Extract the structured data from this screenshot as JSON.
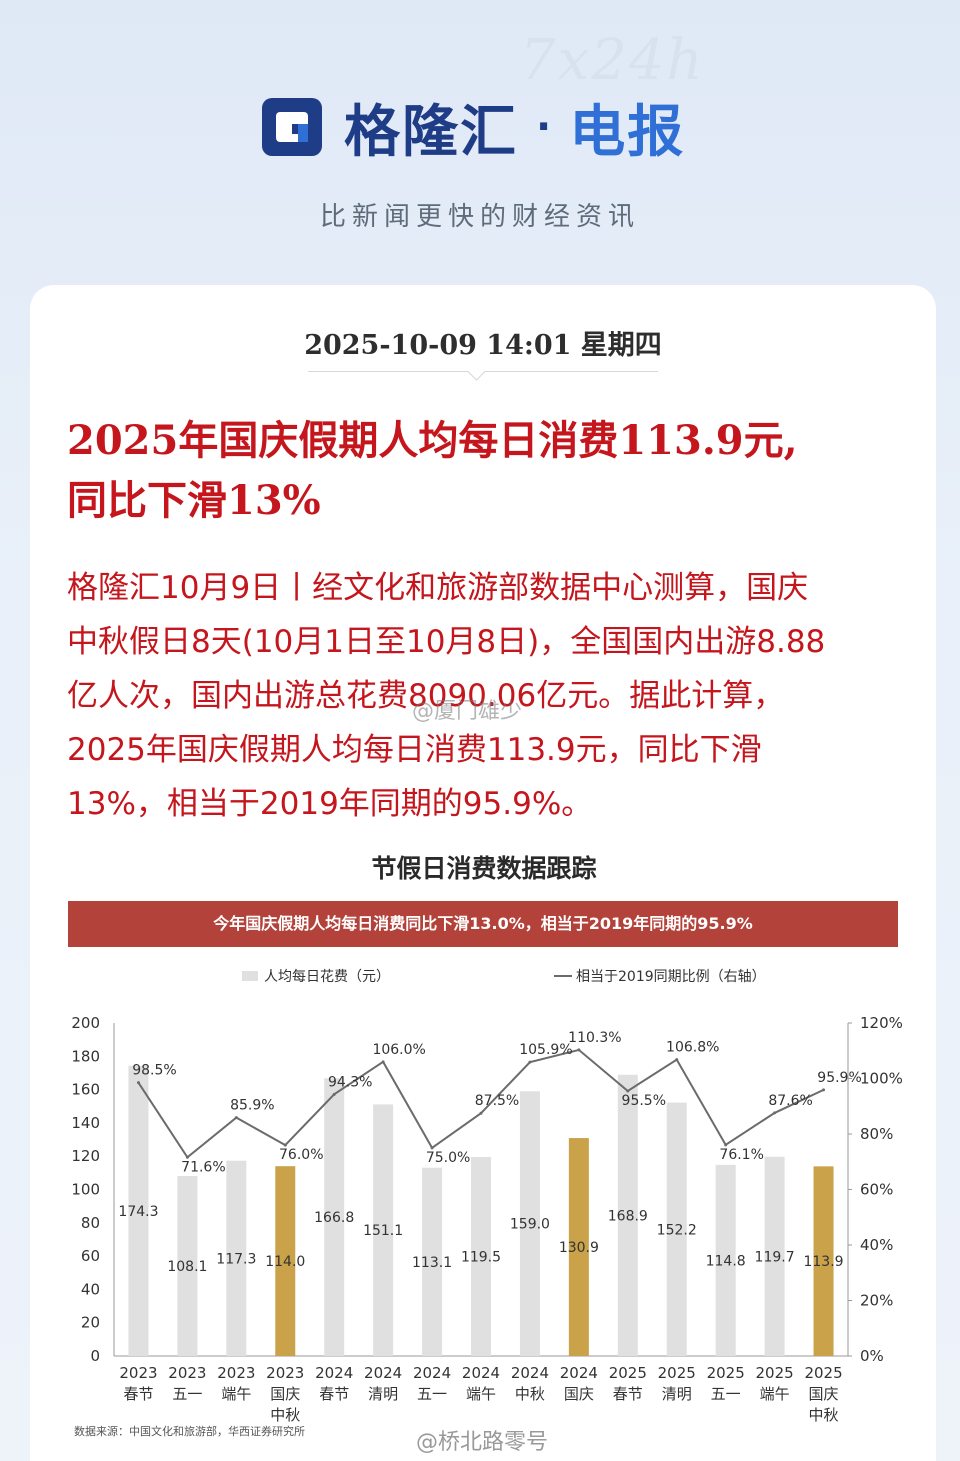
{
  "header": {
    "watermark": "7x24h",
    "brand_name": "格隆汇",
    "brand_dot": "·",
    "brand_sub": "电报",
    "slogan": "比新闻更快的财经资讯"
  },
  "article": {
    "datetime": "2025-10-09 14:01 星期四",
    "headline_line1": "2025年国庆假期人均每日消费113.9元,",
    "headline_line2": "同比下滑13%",
    "body_lines": [
      "格隆汇10月9日丨经文化和旅游部数据中心测算，国庆",
      "中秋假日8天(10月1日至10月8日)，全国国内出游8.88",
      "亿人次，国内出游总花费8090.06亿元。据此计算，",
      "2025年国庆假期人均每日消费113.9元，同比下滑",
      "13%，相当于2019年同期的95.9%。"
    ],
    "mid_watermark": "@厦门雄少"
  },
  "chart_data": {
    "type": "bar",
    "title": "节假日消费数据跟踪",
    "banner": "今年国庆假期人均每日消费同比下滑13.0%，相当于2019年同期的95.9%",
    "categories": [
      [
        "2023",
        "春节"
      ],
      [
        "2023",
        "五一"
      ],
      [
        "2023",
        "端午"
      ],
      [
        "2023",
        "国庆",
        "中秋"
      ],
      [
        "2024",
        "春节"
      ],
      [
        "2024",
        "清明"
      ],
      [
        "2024",
        "五一"
      ],
      [
        "2024",
        "端午"
      ],
      [
        "2024",
        "中秋"
      ],
      [
        "2024",
        "国庆"
      ],
      [
        "2025",
        "春节"
      ],
      [
        "2025",
        "清明"
      ],
      [
        "2025",
        "五一"
      ],
      [
        "2025",
        "端午"
      ],
      [
        "2025",
        "国庆",
        "中秋"
      ]
    ],
    "series": [
      {
        "name": "人均每日花费（元）",
        "axis": "left",
        "values": [
          174.3,
          108.1,
          117.3,
          114.0,
          166.8,
          151.1,
          113.1,
          119.5,
          159.0,
          130.9,
          168.9,
          152.2,
          114.8,
          119.7,
          113.9
        ],
        "labels": [
          "174.3",
          "108.1",
          "117.3",
          "114.0",
          "166.8",
          "151.1",
          "113.1",
          "119.5",
          "159.0",
          "130.9",
          "168.9",
          "152.2",
          "114.8",
          "119.7",
          "113.9"
        ]
      },
      {
        "name": "相当于2019同期比例（右轴）",
        "axis": "right",
        "values": [
          98.5,
          71.6,
          85.9,
          76.0,
          94.3,
          106.0,
          75.0,
          87.5,
          105.9,
          110.3,
          95.5,
          106.8,
          76.1,
          87.6,
          95.9
        ],
        "labels": [
          "98.5%",
          "71.6%",
          "85.9%",
          "76.0%",
          "94.3%",
          "106.0%",
          "75.0%",
          "87.5%",
          "105.9%",
          "110.3%",
          "95.5%",
          "106.8%",
          "76.1%",
          "87.6%",
          "95.9%"
        ]
      }
    ],
    "highlight_indices": [
      3,
      9,
      14
    ],
    "y_left": {
      "min": 0,
      "max": 200,
      "ticks": [
        "0",
        "20",
        "40",
        "60",
        "80",
        "100",
        "120",
        "140",
        "160",
        "180",
        "200"
      ]
    },
    "y_right": {
      "min": 0,
      "max": 120,
      "ticks": [
        "0%",
        "20%",
        "40%",
        "60%",
        "80%",
        "100%",
        "120%"
      ]
    },
    "legend_position": "top",
    "source": "数据来源：中国文化和旅游部，华西证券研究所",
    "colors": {
      "bar": "#e0e0e0",
      "highlight": "#c9a24a",
      "line": "#6b6b6b",
      "banner": "#b3423a"
    }
  },
  "footer": {
    "watermark": "@桥北路零号"
  }
}
